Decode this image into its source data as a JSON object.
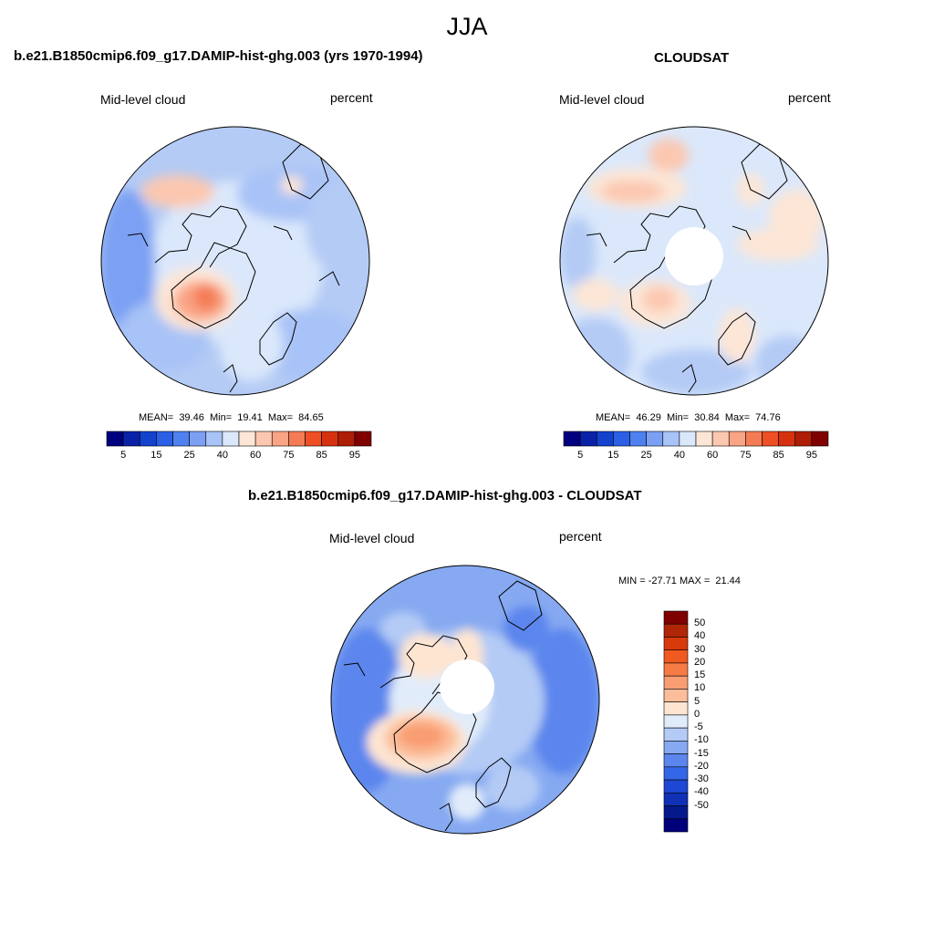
{
  "title": "JJA",
  "panels": [
    {
      "id": "model",
      "heading": "b.e21.B1850cmip6.f09_g17.DAMIP-hist-ghg.003 (yrs 1970-1994)",
      "left_label": "Mid-level cloud",
      "right_label": "percent",
      "stats": "MEAN=  39.46  Min=  19.41  Max=  84.65",
      "stat_values": {
        "mean": 39.46,
        "min": 19.41,
        "max": 84.65
      },
      "pole_hole": false
    },
    {
      "id": "obs",
      "heading": "CLOUDSAT",
      "left_label": "Mid-level cloud",
      "right_label": "percent",
      "stats": "MEAN=  46.29  Min=  30.84  Max=  74.76",
      "stat_values": {
        "mean": 46.29,
        "min": 30.84,
        "max": 74.76
      },
      "pole_hole": true
    },
    {
      "id": "diff",
      "heading": "b.e21.B1850cmip6.f09_g17.DAMIP-hist-ghg.003 - CLOUDSAT",
      "left_label": "Mid-level cloud",
      "right_label": "percent",
      "stats": "MIN = -27.71 MAX =  21.44",
      "stat_values": {
        "min": -27.71,
        "max": 21.44
      },
      "pole_hole": true
    }
  ],
  "colorbar_horizontal": {
    "colors": [
      "#000080",
      "#0a22a8",
      "#1342cc",
      "#2a5fe6",
      "#4f80f0",
      "#7ba0f3",
      "#a8c3f7",
      "#dbe8fb",
      "#fde6d6",
      "#fcc7b0",
      "#f9a485",
      "#f57b55",
      "#ef4f24",
      "#d63210",
      "#ae1d05",
      "#800000"
    ],
    "labels": [
      "5",
      "15",
      "25",
      "40",
      "60",
      "75",
      "85",
      "95"
    ]
  },
  "colorbar_vertical": {
    "colors": [
      "#800000",
      "#b02606",
      "#d93a0c",
      "#f05a20",
      "#f77b45",
      "#f99d72",
      "#fbbd9a",
      "#fde5d2",
      "#e1ecfa",
      "#b4cbf5",
      "#86a9f1",
      "#5b86ed",
      "#3467e8",
      "#1e48d3",
      "#1030b6",
      "#06198c",
      "#00007a"
    ],
    "labels": [
      "50",
      "40",
      "30",
      "20",
      "15",
      "10",
      "5",
      "0",
      "-5",
      "-10",
      "-15",
      "-20",
      "-30",
      "-40",
      "-50"
    ]
  }
}
